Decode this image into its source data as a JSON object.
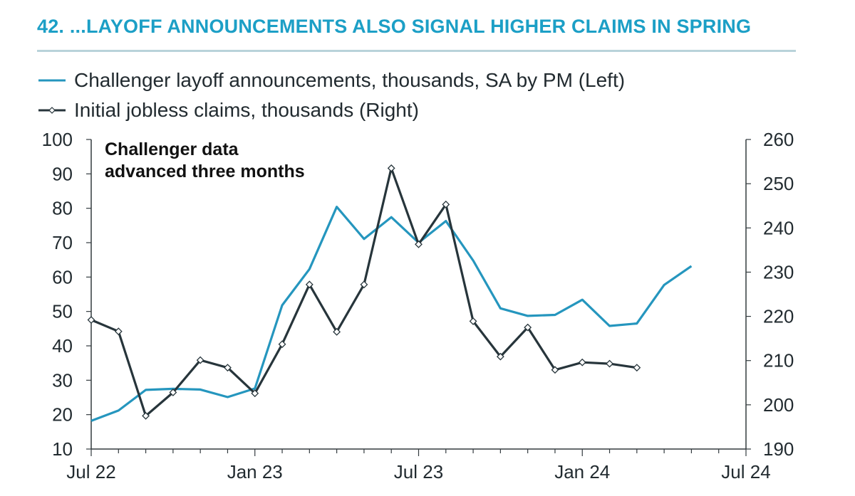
{
  "header": {
    "title": "42.  ...LAYOFF ANNOUNCEMENTS ALSO SIGNAL HIGHER CLAIMS IN SPRING"
  },
  "colors": {
    "series_challenger": "#2596be",
    "series_claims": "#27353b",
    "title": "#1c9fc6",
    "rule": "#b9d3da"
  },
  "chart_data": {
    "type": "line",
    "title": "42.  ...LAYOFF ANNOUNCEMENTS ALSO SIGNAL HIGHER CLAIMS IN SPRING",
    "annotation": [
      "Challenger data",
      "advanced three months"
    ],
    "x_ticks": [
      "Jul 22",
      "Jan 23",
      "Jul 23",
      "Jan 24",
      "Jul 24"
    ],
    "x": [
      "2022-07",
      "2022-08",
      "2022-09",
      "2022-10",
      "2022-11",
      "2022-12",
      "2023-01",
      "2023-02",
      "2023-03",
      "2023-04",
      "2023-05",
      "2023-06",
      "2023-07",
      "2023-08",
      "2023-09",
      "2023-10",
      "2023-11",
      "2023-12",
      "2024-01",
      "2024-02",
      "2024-03",
      "2024-04",
      "2024-05",
      "2024-06",
      "2024-07"
    ],
    "left_axis": {
      "ylim": [
        10,
        100
      ],
      "ticks": [
        10,
        20,
        30,
        40,
        50,
        60,
        70,
        80,
        90,
        100
      ]
    },
    "right_axis": {
      "ylim": [
        190,
        260
      ],
      "ticks": [
        190,
        200,
        210,
        220,
        230,
        240,
        250,
        260
      ]
    },
    "series": [
      {
        "name": "Challenger layoff announcements, thousands, SA by PM (Left)",
        "axis": "left",
        "marker": "none",
        "x": [
          "2022-07",
          "2022-08",
          "2022-09",
          "2022-10",
          "2022-11",
          "2022-12",
          "2023-01",
          "2023-02",
          "2023-03",
          "2023-04",
          "2023-05",
          "2023-06",
          "2023-07",
          "2023-08",
          "2023-09",
          "2023-10",
          "2023-11",
          "2023-12",
          "2024-01",
          "2024-02",
          "2024-03",
          "2024-04",
          "2024-05"
        ],
        "values": [
          18.2,
          21.2,
          27.2,
          27.5,
          27.3,
          25.1,
          27.6,
          51.8,
          62.3,
          80.4,
          71.1,
          77.4,
          70.0,
          76.3,
          64.8,
          50.9,
          48.7,
          49.0,
          53.4,
          45.8,
          46.5,
          57.7,
          63.2
        ]
      },
      {
        "name": "Initial jobless claims, thousands (Right)",
        "axis": "right",
        "marker": "diamond",
        "x": [
          "2022-07",
          "2022-08",
          "2022-09",
          "2022-10",
          "2022-11",
          "2022-12",
          "2023-01",
          "2023-02",
          "2023-03",
          "2023-04",
          "2023-05",
          "2023-06",
          "2023-07",
          "2023-08",
          "2023-09",
          "2023-10",
          "2023-11",
          "2023-12",
          "2024-01",
          "2024-02",
          "2024-03"
        ],
        "values": [
          219.2,
          216.6,
          197.5,
          202.8,
          210.1,
          208.4,
          202.6,
          213.7,
          227.2,
          216.5,
          227.2,
          253.5,
          236.3,
          245.3,
          218.9,
          210.9,
          217.5,
          207.9,
          209.6,
          209.3,
          208.4
        ]
      }
    ]
  }
}
